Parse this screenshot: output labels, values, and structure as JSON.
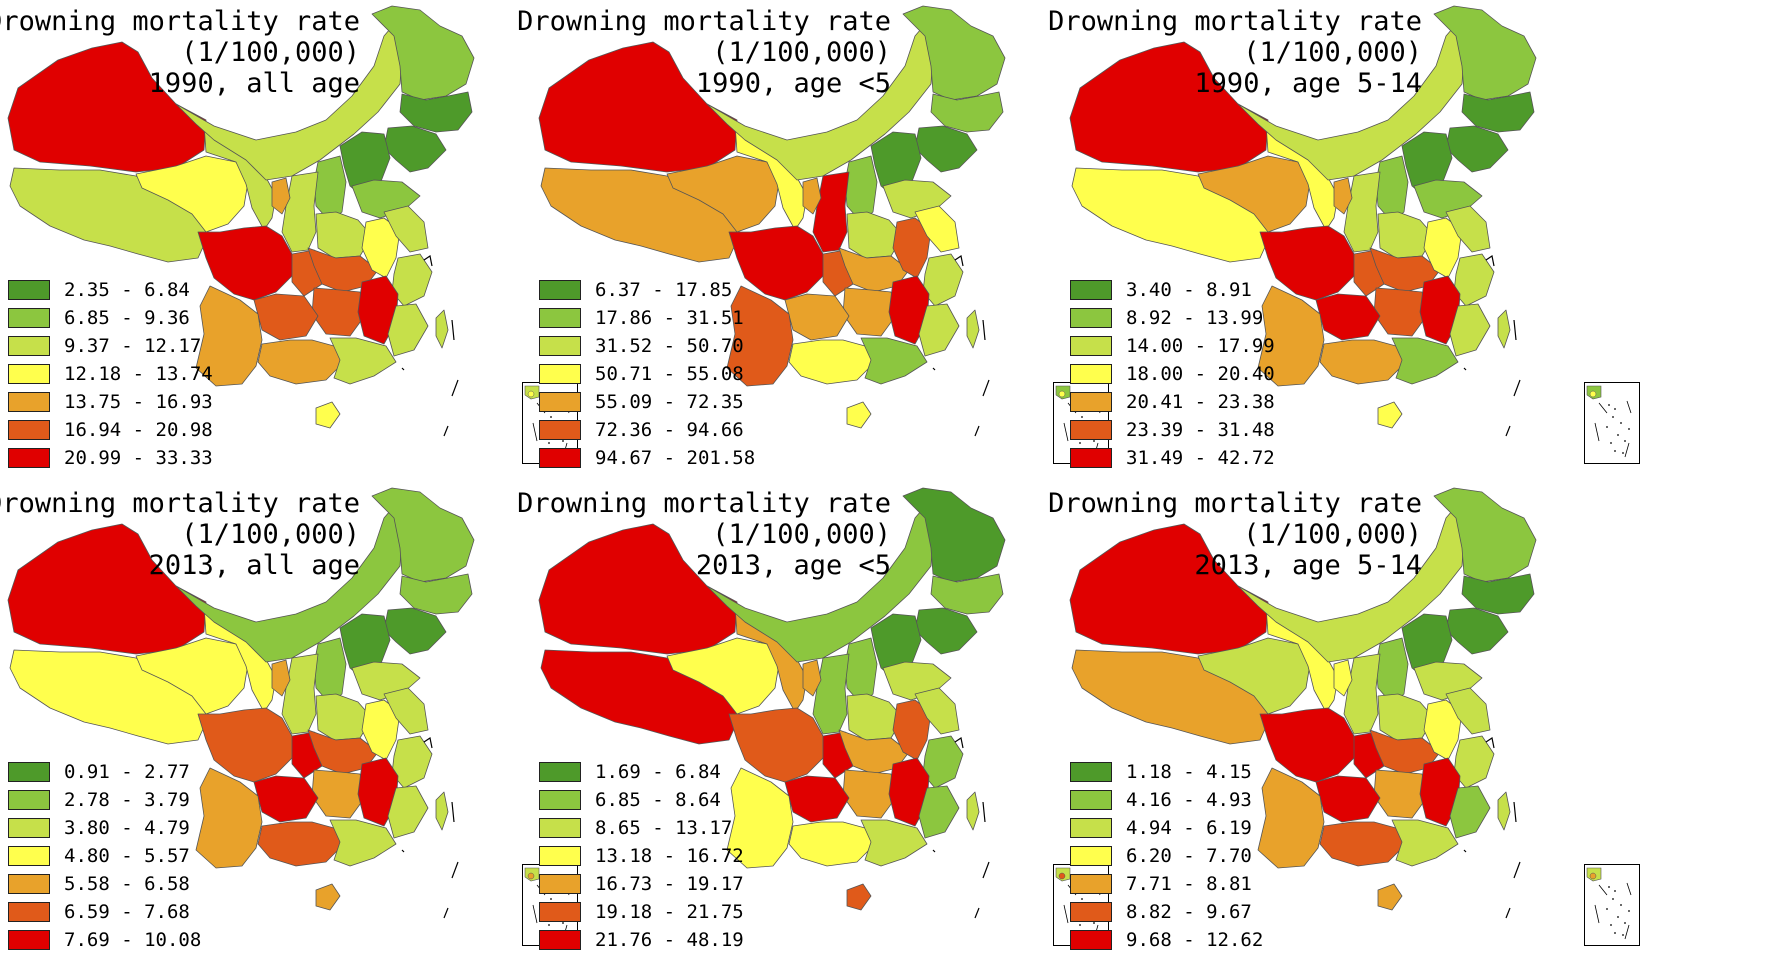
{
  "colors": {
    "c1": "#4e9a2a",
    "c2": "#8cc63f",
    "c3": "#c6e04a",
    "c4": "#ffff4d",
    "c5": "#e8a22b",
    "c6": "#e05a1a",
    "c7": "#e00000"
  },
  "panels": [
    {
      "title_line1": "Drowning mortality rate",
      "title_line2": "(1/100,000)",
      "title_line3": "1990, all age",
      "legend": [
        "2.35 - 6.84",
        "6.85 - 9.36",
        "9.37 - 12.17",
        "12.18 - 13.74",
        "13.75 - 16.93",
        "16.94 - 20.98",
        "20.99 - 33.33"
      ],
      "regions": {
        "xinjiang": "c7",
        "tibet": "c3",
        "qinghai": "c4",
        "gansu": "c3",
        "innermongolia": "c3",
        "heilongjiang": "c2",
        "jilin": "c1",
        "liaoning": "c1",
        "hebei": "c1",
        "shanxi": "c2",
        "shaanxi": "c3",
        "ningxia": "c5",
        "henan": "c3",
        "shandong": "c2",
        "sichuan": "c7",
        "chongqing": "c6",
        "hubei": "c6",
        "anhui": "c4",
        "jiangsu": "c3",
        "zhejiang": "c3",
        "hunan": "c6",
        "jiangxi": "c7",
        "fujian": "c3",
        "guizhou": "c6",
        "yunnan": "c5",
        "guangxi": "c5",
        "guangdong": "c3",
        "hainan": "c4",
        "taiwan": "c3"
      }
    },
    {
      "title_line1": "Drowning mortality rate",
      "title_line2": "(1/100,000)",
      "title_line3": "1990, age <5",
      "legend": [
        "6.37 - 17.85",
        "17.86 - 31.51",
        "31.52 - 50.70",
        "50.71 - 55.08",
        "55.09 - 72.35",
        "72.36 - 94.66",
        "94.67 - 201.58"
      ],
      "regions": {
        "xinjiang": "c7",
        "tibet": "c5",
        "qinghai": "c5",
        "gansu": "c4",
        "innermongolia": "c3",
        "heilongjiang": "c2",
        "jilin": "c2",
        "liaoning": "c1",
        "hebei": "c1",
        "shanxi": "c2",
        "shaanxi": "c7",
        "ningxia": "c5",
        "henan": "c3",
        "shandong": "c3",
        "sichuan": "c7",
        "chongqing": "c6",
        "hubei": "c5",
        "anhui": "c6",
        "jiangsu": "c4",
        "zhejiang": "c3",
        "hunan": "c5",
        "jiangxi": "c7",
        "fujian": "c3",
        "guizhou": "c5",
        "yunnan": "c6",
        "guangxi": "c4",
        "guangdong": "c2",
        "hainan": "c4",
        "taiwan": "c3"
      }
    },
    {
      "title_line1": "Drowning mortality rate",
      "title_line2": "(1/100,000)",
      "title_line3": "1990, age 5-14",
      "legend": [
        "3.40 - 8.91",
        "8.92 - 13.99",
        "14.00 - 17.99",
        "18.00 - 20.40",
        "20.41 - 23.38",
        "23.39 - 31.48",
        "31.49 - 42.72"
      ],
      "regions": {
        "xinjiang": "c7",
        "tibet": "c4",
        "qinghai": "c5",
        "gansu": "c4",
        "innermongolia": "c3",
        "heilongjiang": "c2",
        "jilin": "c1",
        "liaoning": "c1",
        "hebei": "c1",
        "shanxi": "c2",
        "shaanxi": "c3",
        "ningxia": "c5",
        "henan": "c3",
        "shandong": "c2",
        "sichuan": "c7",
        "chongqing": "c6",
        "hubei": "c6",
        "anhui": "c4",
        "jiangsu": "c3",
        "zhejiang": "c3",
        "hunan": "c6",
        "jiangxi": "c7",
        "fujian": "c3",
        "guizhou": "c7",
        "yunnan": "c5",
        "guangxi": "c5",
        "guangdong": "c2",
        "hainan": "c4",
        "taiwan": "c3"
      }
    },
    {
      "title_line1": "Drowning mortality rate",
      "title_line2": "(1/100,000)",
      "title_line3": "2013, all age",
      "legend": [
        "0.91 - 2.77",
        "2.78 - 3.79",
        "3.80 - 4.79",
        "4.80 - 5.57",
        "5.58 - 6.58",
        "6.59 - 7.68",
        "7.69 - 10.08"
      ],
      "regions": {
        "xinjiang": "c7",
        "tibet": "c4",
        "qinghai": "c4",
        "gansu": "c4",
        "innermongolia": "c2",
        "heilongjiang": "c2",
        "jilin": "c2",
        "liaoning": "c1",
        "hebei": "c1",
        "shanxi": "c2",
        "shaanxi": "c3",
        "ningxia": "c5",
        "henan": "c3",
        "shandong": "c3",
        "sichuan": "c6",
        "chongqing": "c7",
        "hubei": "c6",
        "anhui": "c4",
        "jiangsu": "c3",
        "zhejiang": "c3",
        "hunan": "c5",
        "jiangxi": "c7",
        "fujian": "c3",
        "guizhou": "c7",
        "yunnan": "c5",
        "guangxi": "c6",
        "guangdong": "c3",
        "hainan": "c5",
        "taiwan": "c3"
      }
    },
    {
      "title_line1": "Drowning mortality rate",
      "title_line2": "(1/100,000)",
      "title_line3": "2013, age <5",
      "legend": [
        "1.69 - 6.84",
        "6.85 - 8.64",
        "8.65 - 13.17",
        "13.18 - 16.72",
        "16.73 - 19.17",
        "19.18 - 21.75",
        "21.76 - 48.19"
      ],
      "regions": {
        "xinjiang": "c7",
        "tibet": "c7",
        "qinghai": "c4",
        "gansu": "c5",
        "innermongolia": "c2",
        "heilongjiang": "c1",
        "jilin": "c2",
        "liaoning": "c1",
        "hebei": "c1",
        "shanxi": "c2",
        "shaanxi": "c2",
        "ningxia": "c5",
        "henan": "c3",
        "shandong": "c3",
        "sichuan": "c6",
        "chongqing": "c7",
        "hubei": "c5",
        "anhui": "c6",
        "jiangsu": "c3",
        "zhejiang": "c2",
        "hunan": "c5",
        "jiangxi": "c7",
        "fujian": "c2",
        "guizhou": "c7",
        "yunnan": "c4",
        "guangxi": "c4",
        "guangdong": "c3",
        "hainan": "c6",
        "taiwan": "c3"
      }
    },
    {
      "title_line1": "Drowning mortality rate",
      "title_line2": "(1/100,000)",
      "title_line3": "2013, age 5-14",
      "legend": [
        "1.18 - 4.15",
        "4.16 - 4.93",
        "4.94 - 6.19",
        "6.20 - 7.70",
        "7.71 - 8.81",
        "8.82 - 9.67",
        "9.68 - 12.62"
      ],
      "regions": {
        "xinjiang": "c7",
        "tibet": "c5",
        "qinghai": "c3",
        "gansu": "c4",
        "innermongolia": "c3",
        "heilongjiang": "c2",
        "jilin": "c1",
        "liaoning": "c1",
        "hebei": "c1",
        "shanxi": "c2",
        "shaanxi": "c3",
        "ningxia": "c4",
        "henan": "c3",
        "shandong": "c3",
        "sichuan": "c7",
        "chongqing": "c7",
        "hubei": "c6",
        "anhui": "c4",
        "jiangsu": "c3",
        "zhejiang": "c3",
        "hunan": "c5",
        "jiangxi": "c7",
        "fujian": "c2",
        "guizhou": "c7",
        "yunnan": "c5",
        "guangxi": "c6",
        "guangdong": "c3",
        "hainan": "c5",
        "taiwan": "c3"
      }
    }
  ]
}
